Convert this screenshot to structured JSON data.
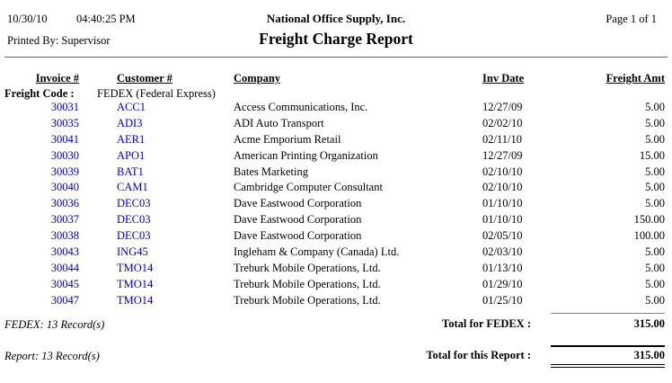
{
  "header": {
    "date": "10/30/10",
    "time": "04:40:25 PM",
    "printed_by": "Printed By: Supervisor",
    "company_name": "National Office Supply, Inc.",
    "report_title": "Freight Charge Report",
    "page_label": "Page 1 of 1"
  },
  "table": {
    "columns": [
      "Invoice #",
      "Customer #",
      "Company",
      "Inv Date",
      "Freight Amt"
    ],
    "group_label": "Freight Code :",
    "group_value": "FEDEX (Federal Express)",
    "rows": [
      {
        "invoice": "30031",
        "customer": "ACC1",
        "company": "Access Communications, Inc.",
        "inv_date": "12/27/09",
        "freight_amt": "5.00"
      },
      {
        "invoice": "30035",
        "customer": "ADI3",
        "company": "ADI Auto Transport",
        "inv_date": "02/02/10",
        "freight_amt": "5.00"
      },
      {
        "invoice": "30041",
        "customer": "AER1",
        "company": "Acme Emporium Retail",
        "inv_date": "02/11/10",
        "freight_amt": "5.00"
      },
      {
        "invoice": "30030",
        "customer": "APO1",
        "company": "American Printing Organization",
        "inv_date": "12/27/09",
        "freight_amt": "15.00"
      },
      {
        "invoice": "30039",
        "customer": "BAT1",
        "company": "Bates Marketing",
        "inv_date": "02/10/10",
        "freight_amt": "5.00"
      },
      {
        "invoice": "30040",
        "customer": "CAM1",
        "company": "Cambridge Computer Consultant",
        "inv_date": "02/10/10",
        "freight_amt": "5.00"
      },
      {
        "invoice": "30036",
        "customer": "DEC03",
        "company": "Dave Eastwood Corporation",
        "inv_date": "01/10/10",
        "freight_amt": "5.00"
      },
      {
        "invoice": "30037",
        "customer": "DEC03",
        "company": "Dave Eastwood Corporation",
        "inv_date": "01/10/10",
        "freight_amt": "150.00"
      },
      {
        "invoice": "30038",
        "customer": "DEC03",
        "company": "Dave Eastwood Corporation",
        "inv_date": "02/05/10",
        "freight_amt": "100.00"
      },
      {
        "invoice": "30043",
        "customer": "ING45",
        "company": "Ingleham & Company (Canada) Ltd.",
        "inv_date": "02/03/10",
        "freight_amt": "5.00"
      },
      {
        "invoice": "30044",
        "customer": "TMO14",
        "company": "Treburk Mobile Operations, Ltd.",
        "inv_date": "01/13/10",
        "freight_amt": "5.00"
      },
      {
        "invoice": "30045",
        "customer": "TMO14",
        "company": "Treburk Mobile Operations, Ltd.",
        "inv_date": "01/29/10",
        "freight_amt": "5.00"
      },
      {
        "invoice": "30047",
        "customer": "TMO14",
        "company": "Treburk Mobile Operations, Ltd.",
        "inv_date": "01/25/10",
        "freight_amt": "5.00"
      }
    ],
    "group_footer": {
      "record_count": "FEDEX: 13 Record(s)",
      "total_label": "Total for FEDEX :",
      "total_value": "315.00"
    },
    "report_footer": {
      "record_count": "Report: 13 Record(s)",
      "total_label": "Total for this Report :",
      "total_value": "315.00"
    }
  },
  "colors": {
    "link_blue": "#0000C8",
    "divider_gray": "#666666"
  }
}
